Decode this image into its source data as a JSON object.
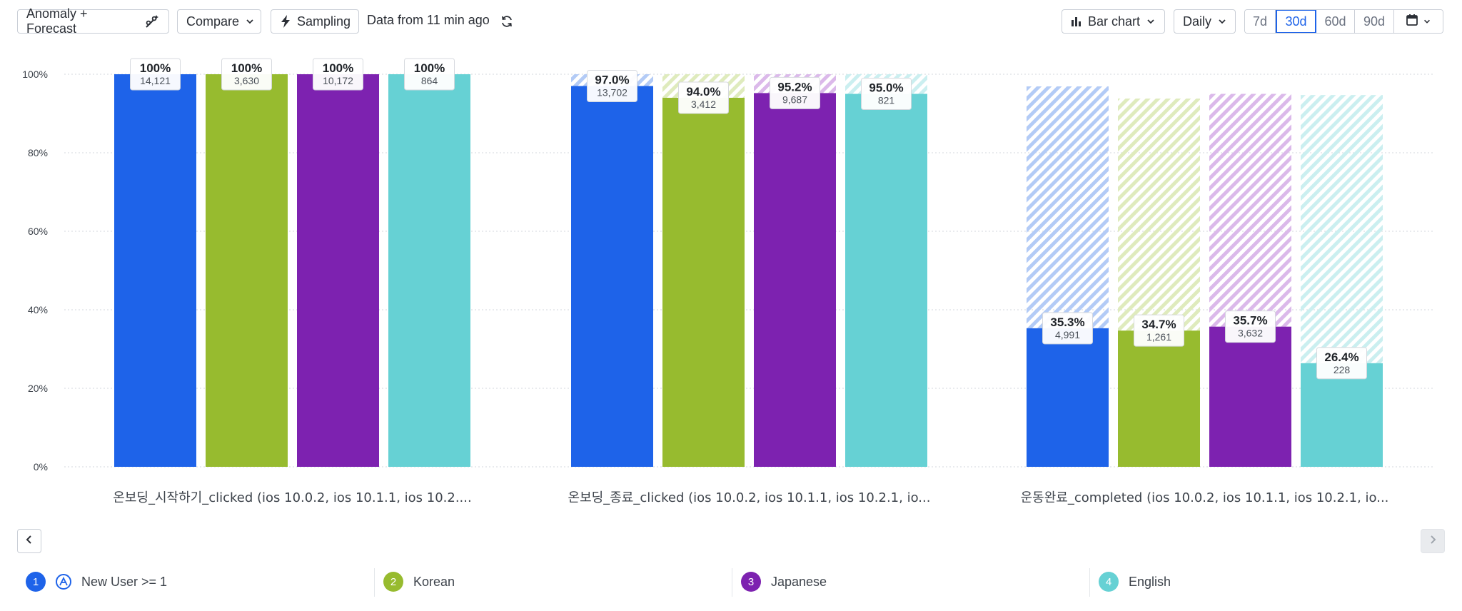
{
  "toolbar": {
    "anomaly_label": "Anomaly + Forecast",
    "compare_label": "Compare",
    "sampling_label": "Sampling",
    "data_freshness": "Data from 11 min ago",
    "chart_type_label": "Bar chart",
    "interval_label": "Daily",
    "ranges": [
      "7d",
      "30d",
      "60d",
      "90d"
    ],
    "active_range": "30d"
  },
  "legend": [
    {
      "num": "1",
      "label": "New User >= 1",
      "color": "#1e63e9"
    },
    {
      "num": "2",
      "label": "Korean",
      "color": "#97bb2f"
    },
    {
      "num": "3",
      "label": "Japanese",
      "color": "#7d22b0"
    },
    {
      "num": "4",
      "label": "English",
      "color": "#66d1d4"
    }
  ],
  "chart_data": {
    "type": "bar",
    "ylim": [
      0,
      100
    ],
    "y_ticks": [
      "0%",
      "20%",
      "40%",
      "60%",
      "80%",
      "100%"
    ],
    "categories": [
      "온보딩_시작하기_clicked (ios 10.0.2, ios 10.1.1, ios 10.2....",
      "온보딩_종료_clicked (ios 10.0.2, ios 10.1.1, ios 10.2.1, io...",
      "운동완료_completed (ios 10.0.2, ios 10.1.1, ios 10.2.1, io..."
    ],
    "series": [
      {
        "name": "New User >= 1",
        "color": "#1e63e9",
        "hatch": "#b3cbf6",
        "values": [
          100,
          97.0,
          35.3
        ],
        "prev": [
          100,
          100,
          96.9
        ],
        "labels": [
          "100%",
          "97.0%",
          "35.3%"
        ],
        "counts": [
          "14,121",
          "13,702",
          "4,991"
        ]
      },
      {
        "name": "Korean",
        "color": "#97bb2f",
        "hatch": "#dfebbd",
        "values": [
          100,
          94.0,
          34.7
        ],
        "prev": [
          100,
          100,
          93.8
        ],
        "labels": [
          "100%",
          "94.0%",
          "34.7%"
        ],
        "counts": [
          "3,630",
          "3,412",
          "1,261"
        ]
      },
      {
        "name": "Japanese",
        "color": "#7d22b0",
        "hatch": "#dbb9ea",
        "values": [
          100,
          95.2,
          35.7
        ],
        "prev": [
          100,
          100,
          95.0
        ],
        "labels": [
          "100%",
          "95.2%",
          "35.7%"
        ],
        "counts": [
          "10,172",
          "9,687",
          "3,632"
        ]
      },
      {
        "name": "English",
        "color": "#66d1d4",
        "hatch": "#cbeff0",
        "values": [
          100,
          95.0,
          26.4
        ],
        "prev": [
          100,
          100,
          94.7
        ],
        "labels": [
          "100%",
          "95.0%",
          "26.4%"
        ],
        "counts": [
          "864",
          "821",
          "228"
        ]
      }
    ]
  }
}
